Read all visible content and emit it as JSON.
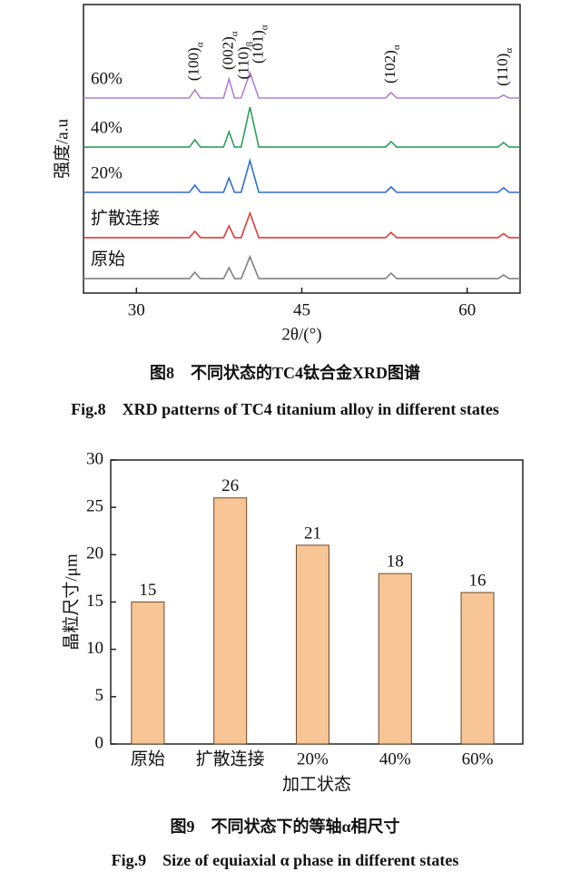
{
  "chart_data": [
    {
      "type": "line",
      "ylabel": "强度/a.u",
      "xlabel": "2θ/(°)",
      "caption_cn": "图8　不同状态的TC4钛合金XRD图谱",
      "caption_en": "Fig.8　XRD patterns of TC4 titanium alloy in different states",
      "xlim": [
        25.2,
        64.8
      ],
      "xticks": [
        30,
        45,
        60
      ],
      "ylim": [
        0,
        100
      ],
      "x": [
        25.2,
        34.8,
        35.3,
        35.8,
        37.9,
        38.4,
        38.9,
        39.5,
        40.3,
        41.1,
        52.6,
        53.1,
        53.6,
        62.8,
        63.3,
        63.8,
        64.8
      ],
      "series": [
        {
          "name": "60%",
          "color": "#b07fd8",
          "values": [
            67.6,
            67.6,
            70.4,
            67.6,
            67.6,
            74.2,
            67.6,
            67.6,
            76.4,
            67.6,
            67.6,
            69.5,
            67.6,
            67.6,
            68.6,
            67.6,
            67.6
          ]
        },
        {
          "name": "40%",
          "color": "#2ca05a",
          "values": [
            50.6,
            50.6,
            53.1,
            50.6,
            50.6,
            55.9,
            50.6,
            50.6,
            64.5,
            50.6,
            50.6,
            52.5,
            50.6,
            50.6,
            52.2,
            50.6,
            50.6
          ]
        },
        {
          "name": "20%",
          "color": "#2f6fcf",
          "values": [
            34.9,
            34.9,
            37.4,
            34.9,
            34.9,
            39.9,
            34.9,
            34.9,
            45.9,
            34.9,
            34.9,
            36.8,
            34.9,
            34.9,
            36.5,
            34.9,
            34.9
          ]
        },
        {
          "name": "扩散连接",
          "color": "#e03c3c",
          "values": [
            19.2,
            19.2,
            21.4,
            19.2,
            19.2,
            23.3,
            19.2,
            19.2,
            27.7,
            19.2,
            19.2,
            21.0,
            19.2,
            19.2,
            20.6,
            19.2,
            19.2
          ]
        },
        {
          "name": "原始",
          "color": "#808080",
          "values": [
            5,
            5,
            7.2,
            5,
            5,
            8.8,
            5,
            5,
            12.6,
            5,
            5,
            6.9,
            5,
            5,
            6.3,
            5,
            5
          ]
        }
      ],
      "annotations": [
        {
          "label": "(100)",
          "subscript": "α",
          "x": 35.3
        },
        {
          "label": "(002)",
          "subscript": "α",
          "x": 38.4
        },
        {
          "label": "(110)",
          "subscript": "β",
          "x": 39.8
        },
        {
          "label": "(101)",
          "subscript": "α",
          "x": 40.3
        },
        {
          "label": "(102)",
          "subscript": "α",
          "x": 53.1
        },
        {
          "label": "(110)",
          "subscript": "α",
          "x": 63.3
        }
      ]
    },
    {
      "type": "bar",
      "ylabel": "晶粒尺寸/μm",
      "xlabel": "加工状态",
      "caption_cn": "图9　不同状态下的等轴α相尺寸",
      "caption_en": "Fig.9　Size of equiaxial α phase in different states",
      "categories": [
        "原始",
        "扩散连接",
        "20%",
        "40%",
        "60%"
      ],
      "values": [
        15,
        26,
        21,
        18,
        16
      ],
      "color": "#f8c596",
      "ylim": [
        0,
        30
      ],
      "yticks": [
        0,
        5,
        10,
        15,
        20,
        25,
        30
      ]
    }
  ]
}
